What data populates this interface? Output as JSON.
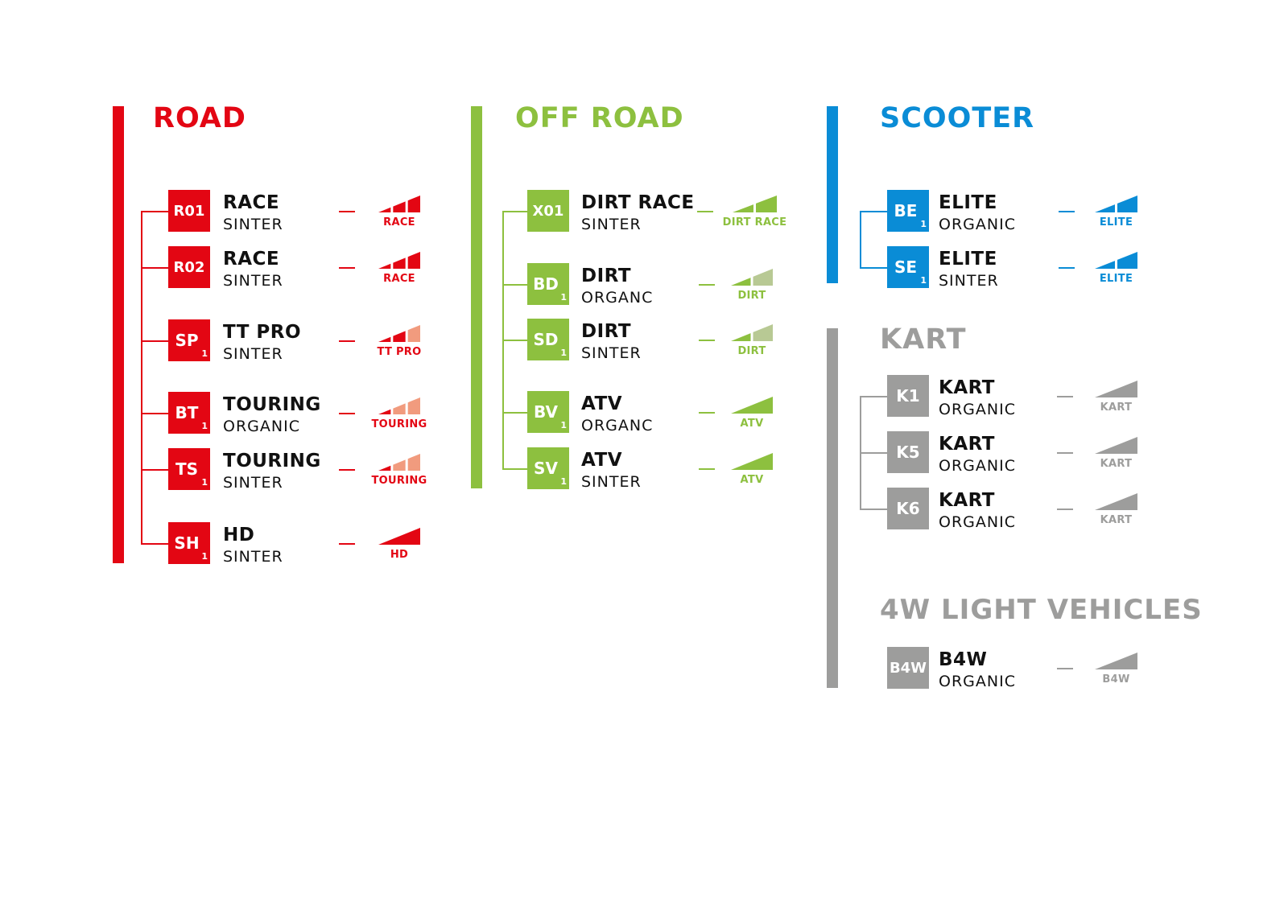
{
  "colors": {
    "road": "#e30613",
    "road_light": "#f19b7e",
    "offroad": "#8dc03f",
    "offroad_light": "#b8c994",
    "scooter": "#0a8cd6",
    "scooter_light": "#8cc6ea",
    "kart": "#9d9d9c",
    "kart_light": "#d0d0d0"
  },
  "groups": [
    {
      "id": "road",
      "title": "ROAD",
      "items": [
        {
          "code": "R01",
          "sub": "",
          "name": "RACE",
          "material": "SINTER",
          "signal": {
            "segments": 3,
            "filled": 3,
            "label": "RACE"
          }
        },
        {
          "code": "R02",
          "sub": "",
          "name": "RACE",
          "material": "SINTER",
          "signal": {
            "segments": 3,
            "filled": 3,
            "label": "RACE"
          }
        },
        {
          "code": "SP",
          "sub": "1",
          "name": "TT PRO",
          "material": "SINTER",
          "signal": {
            "segments": 3,
            "filled": 2,
            "label": "TT PRO"
          }
        },
        {
          "code": "BT",
          "sub": "1",
          "name": "TOURING",
          "material": "ORGANIC",
          "signal": {
            "segments": 3,
            "filled": 1,
            "label": "TOURING"
          }
        },
        {
          "code": "TS",
          "sub": "1",
          "name": "TOURING",
          "material": "SINTER",
          "signal": {
            "segments": 3,
            "filled": 1,
            "label": "TOURING"
          }
        },
        {
          "code": "SH",
          "sub": "1",
          "name": "HD",
          "material": "SINTER",
          "signal": {
            "segments": 1,
            "filled": 1,
            "label": "HD"
          }
        }
      ]
    },
    {
      "id": "offroad",
      "title": "OFF ROAD",
      "items": [
        {
          "code": "X01",
          "sub": "",
          "name": "DIRT RACE",
          "material": "SINTER",
          "signal": {
            "segments": 2,
            "filled": 2,
            "label": "DIRT RACE"
          }
        },
        {
          "code": "BD",
          "sub": "1",
          "name": "DIRT",
          "material": "ORGANC",
          "signal": {
            "segments": 2,
            "filled": 1,
            "label": "DIRT"
          }
        },
        {
          "code": "SD",
          "sub": "1",
          "name": "DIRT",
          "material": "SINTER",
          "signal": {
            "segments": 2,
            "filled": 1,
            "label": "DIRT"
          }
        },
        {
          "code": "BV",
          "sub": "1",
          "name": "ATV",
          "material": "ORGANC",
          "signal": {
            "segments": 1,
            "filled": 1,
            "label": "ATV"
          }
        },
        {
          "code": "SV",
          "sub": "1",
          "name": "ATV",
          "material": "SINTER",
          "signal": {
            "segments": 1,
            "filled": 1,
            "label": "ATV"
          }
        }
      ]
    },
    {
      "id": "scooter",
      "title": "SCOOTER",
      "items": [
        {
          "code": "BE",
          "sub": "1",
          "name": "ELITE",
          "material": "ORGANIC",
          "signal": {
            "segments": 2,
            "filled": 2,
            "label": "ELITE"
          }
        },
        {
          "code": "SE",
          "sub": "1",
          "name": "ELITE",
          "material": "SINTER",
          "signal": {
            "segments": 2,
            "filled": 2,
            "label": "ELITE"
          }
        }
      ]
    },
    {
      "id": "kart",
      "title": "KART",
      "items": [
        {
          "code": "K1",
          "sub": "",
          "name": "KART",
          "material": "ORGANIC",
          "signal": {
            "segments": 1,
            "filled": 1,
            "label": "KART"
          }
        },
        {
          "code": "K5",
          "sub": "",
          "name": "KART",
          "material": "ORGANIC",
          "signal": {
            "segments": 1,
            "filled": 1,
            "label": "KART"
          }
        },
        {
          "code": "K6",
          "sub": "",
          "name": "KART",
          "material": "ORGANIC",
          "signal": {
            "segments": 1,
            "filled": 1,
            "label": "KART"
          }
        }
      ]
    },
    {
      "id": "light4w",
      "title": "4W LIGHT VEHICLES",
      "items": [
        {
          "code": "B4W",
          "sub": "",
          "name": "B4W",
          "material": "ORGANIC",
          "signal": {
            "segments": 1,
            "filled": 1,
            "label": "B4W"
          }
        }
      ]
    }
  ]
}
